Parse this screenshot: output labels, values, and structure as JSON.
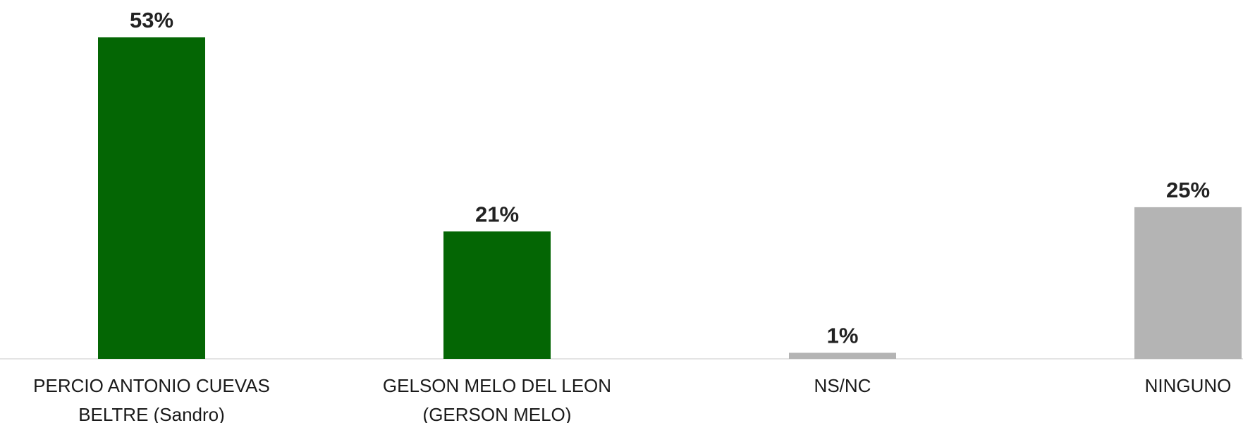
{
  "chart_data": {
    "type": "bar",
    "categories": [
      [
        "PERCIO ANTONIO CUEVAS",
        "BELTRE (Sandro)"
      ],
      [
        "GELSON MELO DEL LEON",
        "(GERSON MELO)"
      ],
      [
        "NS/NC"
      ],
      [
        "NINGUNO"
      ]
    ],
    "values": [
      53,
      21,
      1,
      25
    ],
    "value_labels": [
      "53%",
      "21%",
      "1%",
      "25%"
    ],
    "bar_colors": [
      "#046604",
      "#046604",
      "#b4b4b4",
      "#b4b4b4"
    ],
    "ylim": [
      0,
      53
    ],
    "grid": false,
    "legend": "none"
  }
}
